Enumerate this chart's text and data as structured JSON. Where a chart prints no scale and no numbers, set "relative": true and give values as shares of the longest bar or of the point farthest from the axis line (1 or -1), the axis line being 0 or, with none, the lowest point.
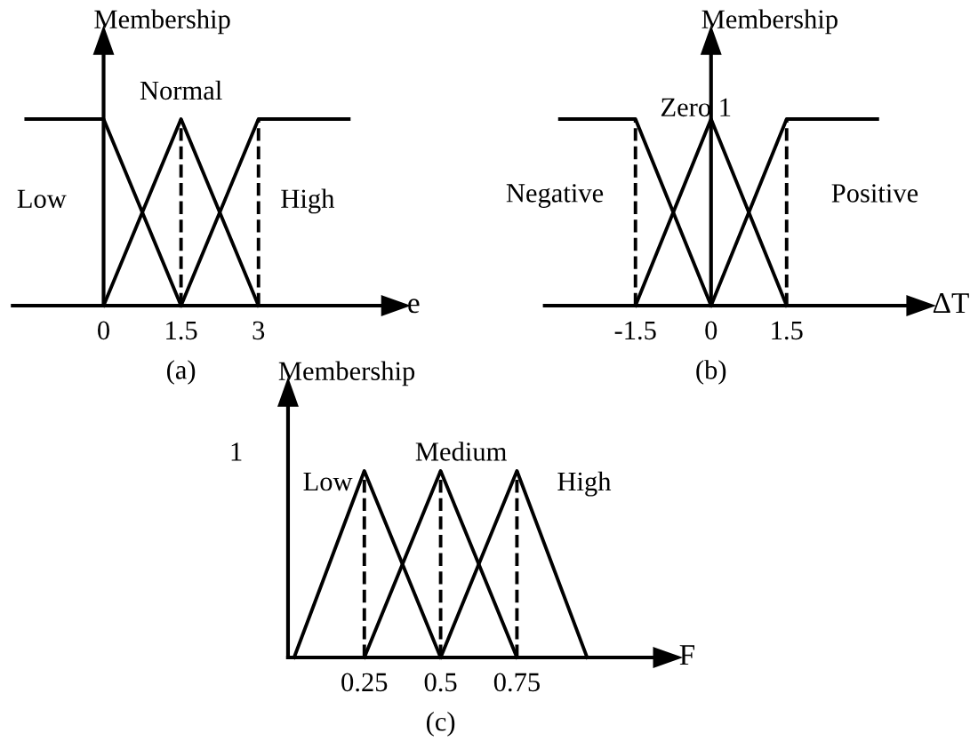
{
  "chart_data": [
    {
      "type": "line",
      "relative": true,
      "title": "(a)",
      "ylabel": "Membership",
      "xlabel": "e",
      "xlim": [
        -1.76,
        5.4
      ],
      "xticks": [
        0,
        1.5,
        3
      ],
      "marker": "none",
      "line_style": "solid",
      "series": [
        {
          "color": "#000000",
          "x": [
            -1.5,
            0,
            1.5
          ],
          "values": [
            1,
            1,
            0
          ]
        },
        {
          "color": "#000000",
          "x": [
            0,
            1.5,
            3
          ],
          "values": [
            0,
            1,
            0
          ]
        },
        {
          "color": "#000000",
          "x": [
            1.5,
            3,
            4.75
          ],
          "values": [
            0,
            1,
            1
          ]
        }
      ],
      "ref_lines": [
        {
          "axis": "x",
          "value": 1.5,
          "line_style": "dashed",
          "color": "#000000"
        },
        {
          "axis": "x",
          "value": 3,
          "line_style": "dashed",
          "color": "#000000"
        }
      ],
      "annotations": [
        "Low",
        "Normal",
        "High"
      ]
    },
    {
      "type": "line",
      "relative": true,
      "title": "(b)",
      "ylabel": "Membership",
      "xlabel": "ΔT",
      "xlim": [
        -3.3,
        3.9
      ],
      "xticks": [
        -1.5,
        0,
        1.5
      ],
      "marker": "none",
      "line_style": "solid",
      "series": [
        {
          "color": "#000000",
          "x": [
            -3,
            -1.5,
            0
          ],
          "values": [
            1,
            1,
            0
          ]
        },
        {
          "color": "#000000",
          "x": [
            -1.5,
            0,
            1.5
          ],
          "values": [
            0,
            1,
            0
          ]
        },
        {
          "color": "#000000",
          "x": [
            0,
            1.5,
            3.3
          ],
          "values": [
            0,
            1,
            1
          ]
        }
      ],
      "ref_lines": [
        {
          "axis": "x",
          "value": -1.5,
          "line_style": "dashed",
          "color": "#000000"
        },
        {
          "axis": "x",
          "value": 1.5,
          "line_style": "dashed",
          "color": "#000000"
        }
      ],
      "annotations": [
        "Negative",
        "Zero 1",
        "Positive"
      ]
    },
    {
      "type": "line",
      "relative": true,
      "title": "(c)",
      "ylabel": "Membership",
      "xlabel": "F",
      "xlim": [
        0,
        1.2
      ],
      "xticks": [
        0.25,
        0.5,
        0.75
      ],
      "marker": "none",
      "line_style": "solid",
      "series": [
        {
          "color": "#000000",
          "x": [
            0.02,
            0.25,
            0.5
          ],
          "values": [
            0,
            1,
            0
          ]
        },
        {
          "color": "#000000",
          "x": [
            0.25,
            0.5,
            0.75
          ],
          "values": [
            0,
            1,
            0
          ]
        },
        {
          "color": "#000000",
          "x": [
            0.5,
            0.75,
            0.98
          ],
          "values": [
            0,
            1,
            0
          ]
        }
      ],
      "ref_lines": [
        {
          "axis": "x",
          "value": 0.25,
          "line_style": "dashed",
          "color": "#000000"
        },
        {
          "axis": "x",
          "value": 0.5,
          "line_style": "dashed",
          "color": "#000000"
        },
        {
          "axis": "x",
          "value": 0.75,
          "line_style": "dashed",
          "color": "#000000"
        }
      ],
      "annotations": [
        "Low",
        "Medium",
        "High",
        "1"
      ]
    }
  ]
}
